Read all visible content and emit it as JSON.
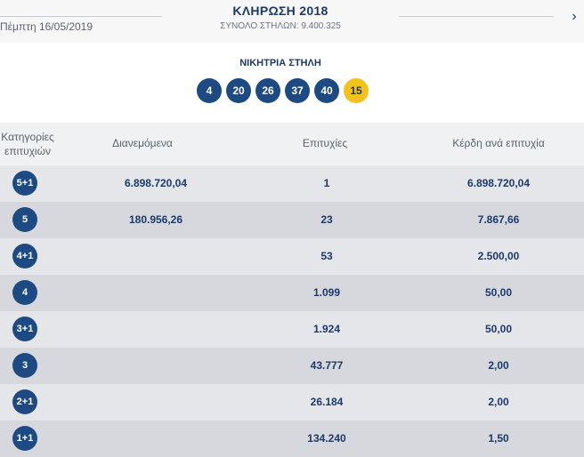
{
  "header": {
    "date": "Πέμπτη 16/05/2019",
    "title": "ΚΛΗΡΩΣΗ 2018",
    "columns_total": "ΣΥΝΟΛΟ ΣΤΗΛΩΝ: 9.400.325",
    "next_icon": "chevron-right-icon"
  },
  "winning": {
    "title": "ΝΙΚΗΤΡΙΑ ΣΤΗΛΗ",
    "numbers": [
      "4",
      "20",
      "26",
      "37",
      "40"
    ],
    "bonus": "15",
    "colors": {
      "ball": "#1d4a83",
      "bonus": "#f5c21b"
    }
  },
  "table": {
    "headers": {
      "category_line1": "Κατηγορίες",
      "category_line2": "επιτυχιών",
      "distributed": "Διανεμόμενα",
      "winners": "Επιτυχίες",
      "prize": "Κέρδη ανά επιτυχία"
    },
    "rows": [
      {
        "category": "5+1",
        "distributed": "6.898.720,04",
        "winners": "1",
        "prize": "6.898.720,04"
      },
      {
        "category": "5",
        "distributed": "180.956,26",
        "winners": "23",
        "prize": "7.867,66"
      },
      {
        "category": "4+1",
        "distributed": "",
        "winners": "53",
        "prize": "2.500,00"
      },
      {
        "category": "4",
        "distributed": "",
        "winners": "1.099",
        "prize": "50,00"
      },
      {
        "category": "3+1",
        "distributed": "",
        "winners": "1.924",
        "prize": "50,00"
      },
      {
        "category": "3",
        "distributed": "",
        "winners": "43.777",
        "prize": "2,00"
      },
      {
        "category": "2+1",
        "distributed": "",
        "winners": "26.184",
        "prize": "2,00"
      },
      {
        "category": "1+1",
        "distributed": "",
        "winners": "134.240",
        "prize": "1,50"
      }
    ]
  }
}
